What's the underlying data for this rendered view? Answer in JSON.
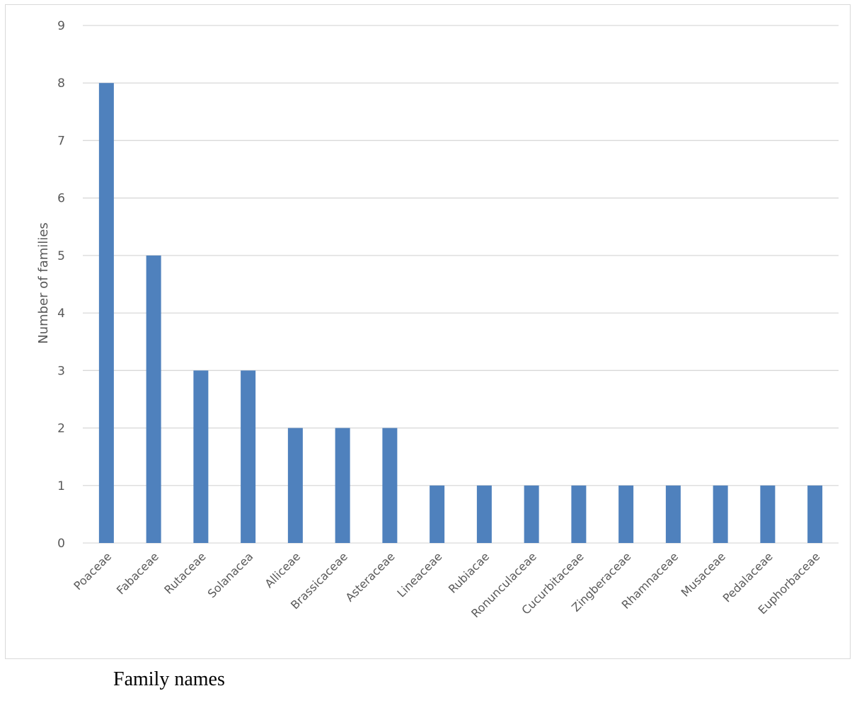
{
  "chart_data": {
    "type": "bar",
    "categories": [
      "Poaceae",
      "Fabaceae",
      "Rutaceae",
      "Solanacea",
      "Alliceae",
      "Brassicaceae",
      "Asteraceae",
      "Lineaceae",
      "Rubiacae",
      "Ronunculaceae",
      "Cucurbitaceae",
      "Zingberaceae",
      "Rhamnaceae",
      "Musaceae",
      "Pedalaceae",
      "Euphorbaceae"
    ],
    "values": [
      8,
      5,
      3,
      3,
      2,
      2,
      2,
      1,
      1,
      1,
      1,
      1,
      1,
      1,
      1,
      1
    ],
    "ylabel": "Number of families",
    "xlabel": "Family names",
    "ylim": [
      0,
      9
    ],
    "yticks": [
      "0",
      "1",
      "2",
      "3",
      "4",
      "5",
      "6",
      "7",
      "8",
      "9"
    ],
    "bar_color": "#4f81bd",
    "grid": true,
    "legend": "none"
  }
}
